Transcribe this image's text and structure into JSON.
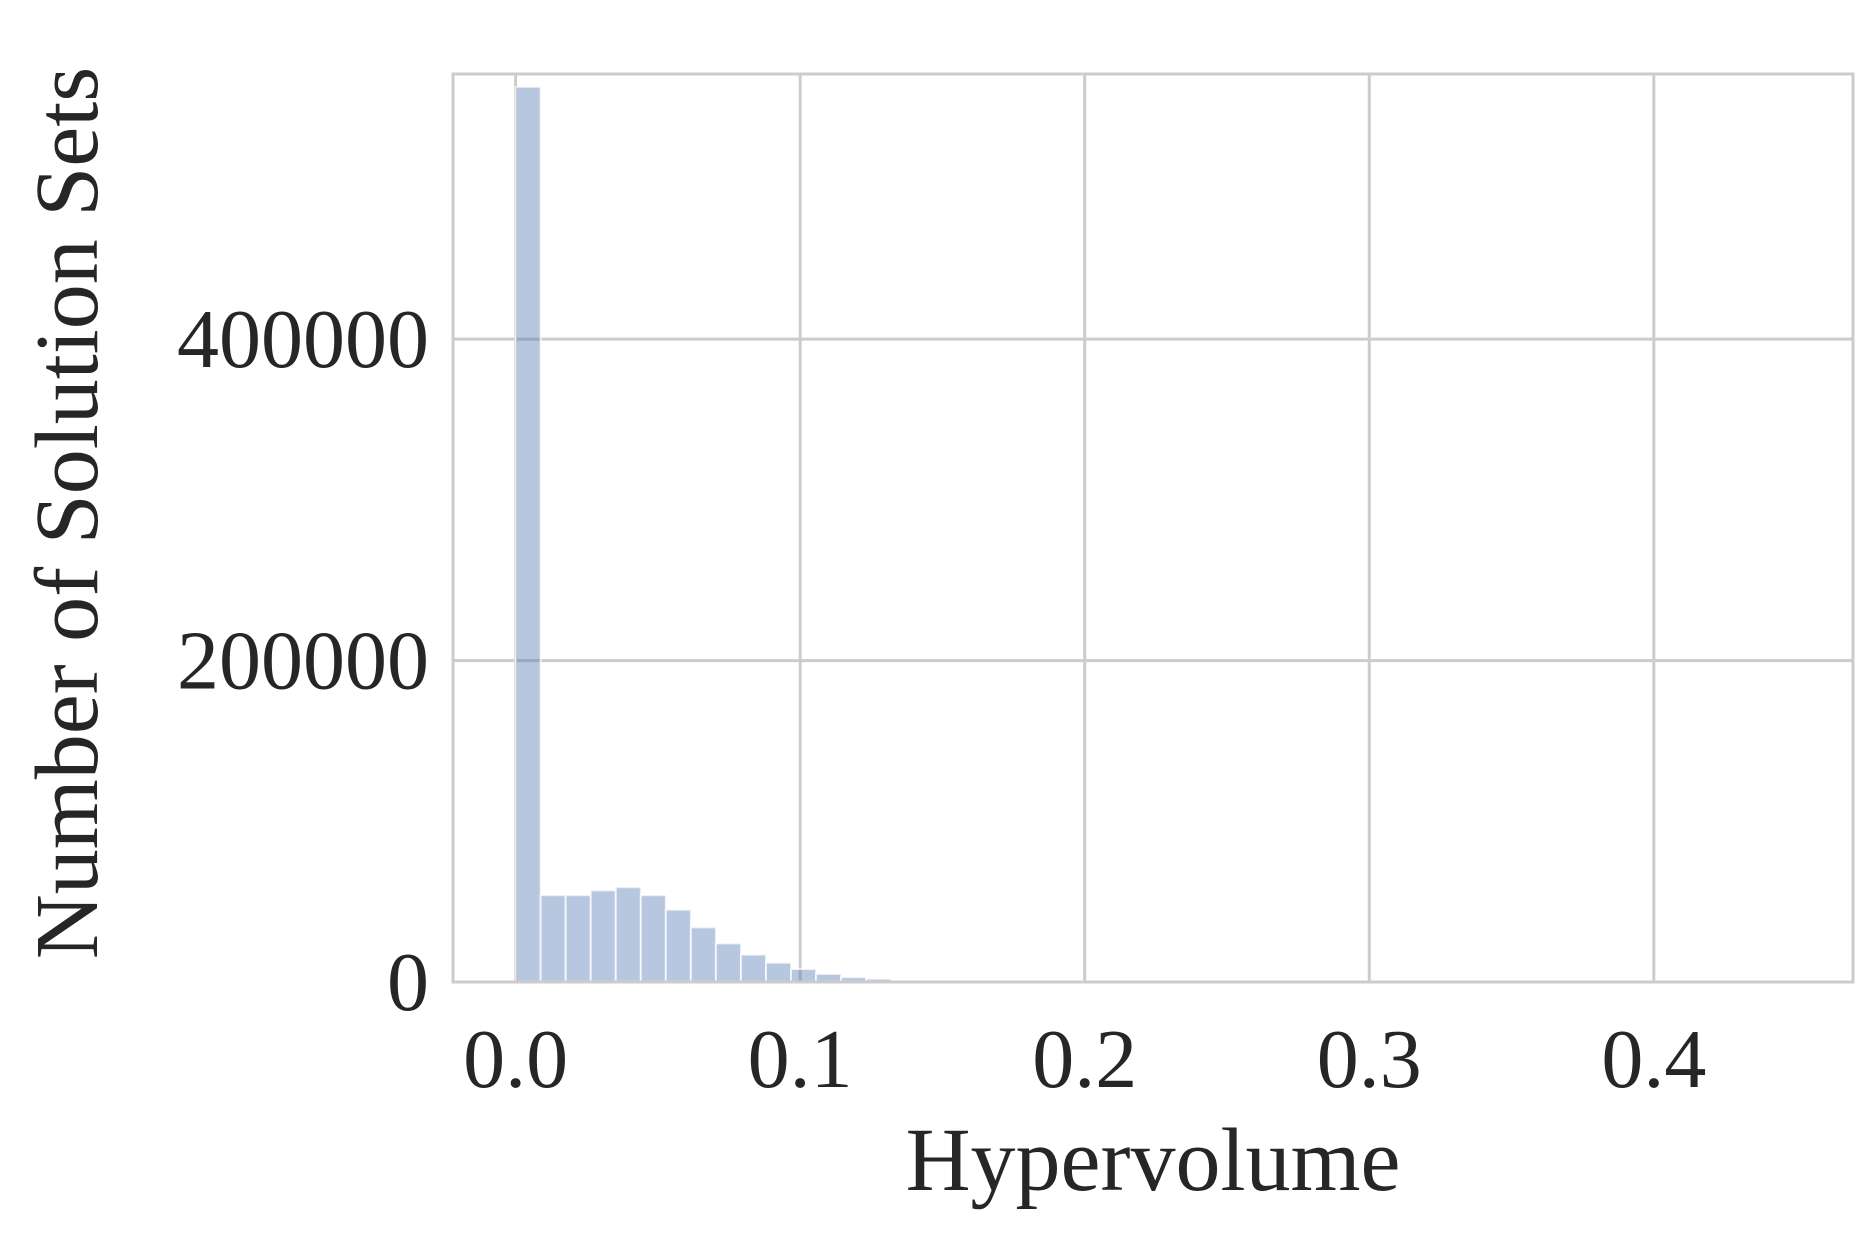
{
  "chart_data": {
    "type": "bar",
    "title": "",
    "xlabel": "Hypervolume",
    "ylabel": "Number of Solution Sets",
    "xlim": [
      -0.022,
      0.47
    ],
    "ylim": [
      0,
      565000
    ],
    "xticks": [
      0.0,
      0.1,
      0.2,
      0.3,
      0.4
    ],
    "xtick_labels": [
      "0.0",
      "0.1",
      "0.2",
      "0.3",
      "0.4"
    ],
    "yticks": [
      0,
      200000,
      400000
    ],
    "ytick_labels": [
      "0",
      "200000",
      "400000"
    ],
    "grid": true,
    "bar_color": "#4c72b0",
    "bar_opacity": 0.4,
    "bin_edges": [
      0.0,
      0.0088,
      0.0176,
      0.0264,
      0.0352,
      0.044,
      0.0528,
      0.0616,
      0.0704,
      0.0792,
      0.088,
      0.0968,
      0.1056,
      0.1144,
      0.1232,
      0.132,
      0.1408,
      0.1496
    ],
    "values": [
      557000,
      54000,
      54000,
      57000,
      59000,
      54000,
      45000,
      34000,
      24000,
      17000,
      12000,
      8000,
      5000,
      3000,
      2000,
      1000,
      500
    ]
  }
}
